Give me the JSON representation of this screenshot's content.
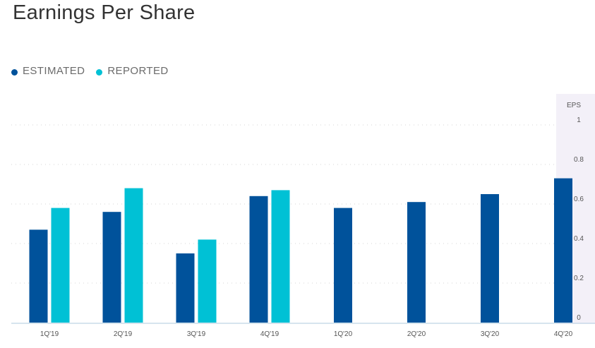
{
  "title": "Earnings Per Share",
  "legend": [
    {
      "label": "ESTIMATED",
      "color": "#00529b"
    },
    {
      "label": "REPORTED",
      "color": "#00c1d5"
    }
  ],
  "chart_data": {
    "type": "bar",
    "title": "Earnings Per Share",
    "ylabel": "EPS",
    "ylim": [
      0,
      1
    ],
    "yticks": [
      "0",
      "0.2",
      "0.4",
      "0.6",
      "0.8",
      "1"
    ],
    "grid": true,
    "legend_position": "top-left",
    "categories": [
      "1Q'19",
      "2Q'19",
      "3Q'19",
      "4Q'19",
      "1Q'20",
      "2Q'20",
      "3Q'20",
      "4Q'20"
    ],
    "series": [
      {
        "name": "ESTIMATED",
        "color": "#00529b",
        "values": [
          0.47,
          0.56,
          0.35,
          0.64,
          0.58,
          0.61,
          0.65,
          0.73
        ]
      },
      {
        "name": "REPORTED",
        "color": "#00c1d5",
        "values": [
          0.58,
          0.68,
          0.42,
          0.67,
          null,
          null,
          null,
          null
        ]
      }
    ]
  }
}
